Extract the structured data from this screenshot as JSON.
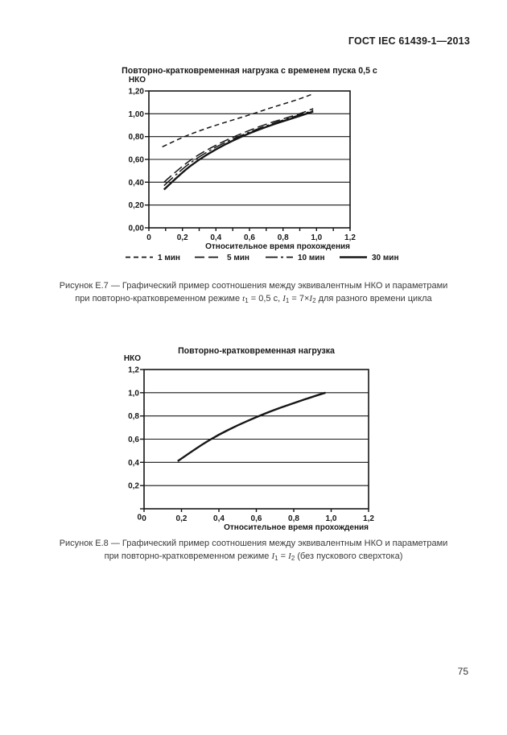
{
  "page": {
    "header": "ГОСТ IEC 61439-1—2013",
    "page_number": "75"
  },
  "figure_e7": {
    "caption_line1": "Рисунок Е.7 — Графический пример соотношения между эквивалентным НКО и параметрами",
    "caption_line2": [
      {
        "t": "при повторно-кратковременном режиме "
      },
      {
        "t": "t",
        "i": true
      },
      {
        "t": "1",
        "sub": true
      },
      {
        "t": " = 0,5 с, "
      },
      {
        "t": "I",
        "i": true
      },
      {
        "t": "1",
        "sub": true
      },
      {
        "t": " = 7×"
      },
      {
        "t": "I",
        "i": true
      },
      {
        "t": "2",
        "sub": true
      },
      {
        "t": " для разного времени цикла"
      }
    ]
  },
  "figure_e8": {
    "caption_line1": "Рисунок Е.8 — Графический пример соотношения между эквивалентным НКО и параметрами",
    "caption_line2": [
      {
        "t": "при повторно-кратковременном режиме "
      },
      {
        "t": "I",
        "i": true
      },
      {
        "t": "1",
        "sub": true
      },
      {
        "t": " = "
      },
      {
        "t": "I",
        "i": true
      },
      {
        "t": "2",
        "sub": true
      },
      {
        "t": " (без пускового сверхтока)"
      }
    ]
  },
  "chart_data": [
    {
      "type": "line",
      "title": "Повторно-кратковременная нагрузка с временем пуска 0,5 с",
      "ylabel": "НКО",
      "xlabel": "Относительное время прохождения",
      "xlim": [
        0,
        1.2
      ],
      "ylim": [
        0,
        1.2
      ],
      "grid": "horizontal",
      "legend_position": "bottom",
      "x_ticks": [
        {
          "v": 0,
          "label": "0"
        },
        {
          "v": 0.2,
          "label": "0,2"
        },
        {
          "v": 0.4,
          "label": "0,4"
        },
        {
          "v": 0.6,
          "label": "0,6"
        },
        {
          "v": 0.8,
          "label": "0,8"
        },
        {
          "v": 1.0,
          "label": "1,0"
        },
        {
          "v": 1.2,
          "label": "1,2"
        }
      ],
      "y_ticks": [
        {
          "v": 0,
          "label": "0,00"
        },
        {
          "v": 0.2,
          "label": "0,20"
        },
        {
          "v": 0.4,
          "label": "0,40"
        },
        {
          "v": 0.6,
          "label": "0,60"
        },
        {
          "v": 0.8,
          "label": "0,80"
        },
        {
          "v": 1.0,
          "label": "1,00"
        },
        {
          "v": 1.2,
          "label": "1,20"
        }
      ],
      "line_color": "#161616",
      "series": [
        {
          "name": "1 мин",
          "dash": "6 4",
          "width": 1.5,
          "points": [
            [
              0.08,
              0.71
            ],
            [
              0.2,
              0.795
            ],
            [
              0.3,
              0.85
            ],
            [
              0.4,
              0.9
            ],
            [
              0.5,
              0.945
            ],
            [
              0.6,
              0.99
            ],
            [
              0.7,
              1.04
            ],
            [
              0.8,
              1.085
            ],
            [
              0.9,
              1.13
            ],
            [
              0.98,
              1.175
            ]
          ]
        },
        {
          "name": "5 мин",
          "dash": "12 5",
          "width": 1.5,
          "points": [
            [
              0.09,
              0.4
            ],
            [
              0.2,
              0.545
            ],
            [
              0.3,
              0.645
            ],
            [
              0.4,
              0.725
            ],
            [
              0.5,
              0.795
            ],
            [
              0.6,
              0.855
            ],
            [
              0.7,
              0.91
            ],
            [
              0.8,
              0.955
            ],
            [
              0.9,
              1.0
            ],
            [
              0.98,
              1.045
            ]
          ]
        },
        {
          "name": "10 мин",
          "dash": "15 4 3 4",
          "width": 1.5,
          "points": [
            [
              0.09,
              0.37
            ],
            [
              0.2,
              0.52
            ],
            [
              0.3,
              0.625
            ],
            [
              0.4,
              0.71
            ],
            [
              0.5,
              0.78
            ],
            [
              0.6,
              0.84
            ],
            [
              0.7,
              0.895
            ],
            [
              0.8,
              0.945
            ],
            [
              0.9,
              0.99
            ],
            [
              0.98,
              1.03
            ]
          ]
        },
        {
          "name": "30 мин",
          "dash": "",
          "width": 2.4,
          "points": [
            [
              0.09,
              0.335
            ],
            [
              0.2,
              0.49
            ],
            [
              0.3,
              0.6
            ],
            [
              0.4,
              0.69
            ],
            [
              0.5,
              0.765
            ],
            [
              0.6,
              0.83
            ],
            [
              0.7,
              0.885
            ],
            [
              0.8,
              0.935
            ],
            [
              0.9,
              0.98
            ],
            [
              0.98,
              1.02
            ]
          ]
        }
      ]
    },
    {
      "type": "line",
      "title": "Повторно-кратковременная нагрузка",
      "ylabel": "НКО",
      "xlabel": "Относительное время прохождения",
      "xlim": [
        0,
        1.2
      ],
      "ylim": [
        0,
        1.2
      ],
      "grid": "horizontal",
      "legend_position": "none",
      "x_ticks": [
        {
          "v": 0,
          "label": "0"
        },
        {
          "v": 0.2,
          "label": "0,2"
        },
        {
          "v": 0.4,
          "label": "0,4"
        },
        {
          "v": 0.6,
          "label": "0,6"
        },
        {
          "v": 0.8,
          "label": "0,8"
        },
        {
          "v": 1.0,
          "label": "1,0"
        },
        {
          "v": 1.2,
          "label": "1,2"
        }
      ],
      "y_ticks": [
        {
          "v": 0,
          "label": "0"
        },
        {
          "v": 0.2,
          "label": "0,2"
        },
        {
          "v": 0.4,
          "label": "0,4"
        },
        {
          "v": 0.6,
          "label": "0,6"
        },
        {
          "v": 0.8,
          "label": "0,8"
        },
        {
          "v": 1.0,
          "label": "1,0"
        },
        {
          "v": 1.2,
          "label": "1,2"
        }
      ],
      "line_color": "#161616",
      "series": [
        {
          "name": "",
          "dash": "",
          "width": 2.4,
          "points": [
            [
              0.18,
              0.41
            ],
            [
              0.3,
              0.545
            ],
            [
              0.4,
              0.64
            ],
            [
              0.5,
              0.72
            ],
            [
              0.6,
              0.79
            ],
            [
              0.7,
              0.855
            ],
            [
              0.8,
              0.91
            ],
            [
              0.9,
              0.965
            ],
            [
              0.97,
              1.0
            ]
          ]
        }
      ]
    }
  ]
}
